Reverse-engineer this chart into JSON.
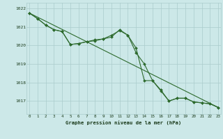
{
  "line1_x": [
    0,
    1,
    2,
    3,
    4,
    5,
    6,
    7,
    8,
    9,
    10,
    11,
    12,
    13,
    14,
    15,
    16,
    17,
    18,
    19,
    20,
    21,
    22,
    23
  ],
  "line1_y": [
    1021.75,
    1021.45,
    1021.1,
    1020.85,
    1020.75,
    1020.05,
    1020.1,
    1020.2,
    1020.25,
    1020.35,
    1020.55,
    1020.8,
    1020.55,
    1019.6,
    1019.0,
    1018.1,
    1017.55,
    1017.0,
    1017.15,
    1017.15,
    1016.95,
    1016.9,
    1016.85,
    1016.65
  ],
  "line2_x": [
    0,
    1,
    2,
    3,
    4,
    5,
    6,
    7,
    8,
    9,
    10,
    11,
    12,
    13,
    14,
    15,
    16,
    17,
    18,
    19,
    20,
    21,
    22,
    23
  ],
  "line2_y": [
    1021.75,
    1021.45,
    1021.1,
    1020.85,
    1020.75,
    1020.05,
    1020.1,
    1020.2,
    1020.3,
    1020.35,
    1020.45,
    1020.85,
    1020.55,
    1019.85,
    1018.1,
    1018.1,
    1017.6,
    1017.0,
    1017.15,
    1017.15,
    1016.95,
    1016.9,
    1016.85,
    1016.65
  ],
  "trend_x": [
    0,
    23
  ],
  "trend_y": [
    1021.75,
    1016.65
  ],
  "color": "#2d6a2d",
  "bg_color": "#cce8e8",
  "grid_color": "#aacccc",
  "xlabel": "Graphe pression niveau de la mer (hPa)",
  "ylim": [
    1016.3,
    1022.3
  ],
  "xlim": [
    -0.3,
    23.3
  ],
  "yticks": [
    1017,
    1018,
    1019,
    1020,
    1021,
    1022
  ],
  "xticks": [
    0,
    1,
    2,
    3,
    4,
    5,
    6,
    7,
    8,
    9,
    10,
    11,
    12,
    13,
    14,
    15,
    16,
    17,
    18,
    19,
    20,
    21,
    22,
    23
  ]
}
